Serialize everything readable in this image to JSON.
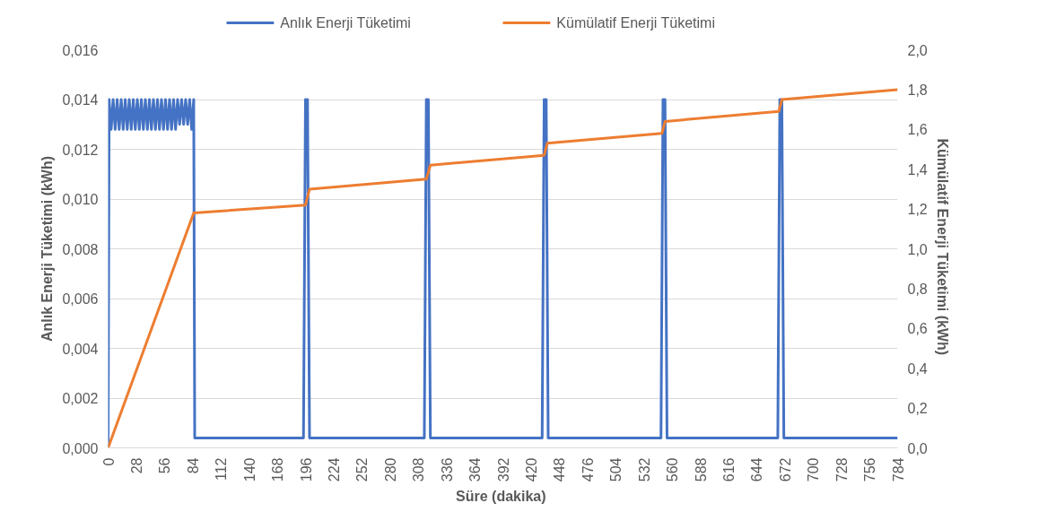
{
  "chart_data": {
    "type": "line",
    "xlabel": "Süre  (dakika)",
    "ylabel": "Anlık Enerji Tüketimi (kWh)",
    "y2label": "Kümülatif Enerji Tüketimi  (kWh)",
    "xlim": [
      0,
      784
    ],
    "xticks": [
      0,
      28,
      56,
      84,
      112,
      140,
      168,
      196,
      224,
      252,
      280,
      308,
      336,
      364,
      392,
      420,
      448,
      476,
      504,
      532,
      560,
      588,
      616,
      644,
      672,
      700,
      728,
      756,
      784
    ],
    "ylim": [
      0,
      0.016
    ],
    "yticks": [
      {
        "value": 0,
        "label": "0,000"
      },
      {
        "value": 0.002,
        "label": "0,002"
      },
      {
        "value": 0.004,
        "label": "0,004"
      },
      {
        "value": 0.006,
        "label": "0,006"
      },
      {
        "value": 0.008,
        "label": "0,008"
      },
      {
        "value": 0.01,
        "label": "0,010"
      },
      {
        "value": 0.012,
        "label": "0,012"
      },
      {
        "value": 0.014,
        "label": "0,014"
      },
      {
        "value": 0.016,
        "label": "0,016"
      }
    ],
    "y2lim": [
      0,
      2.0
    ],
    "y2ticks": [
      {
        "value": 0,
        "label": "0,0"
      },
      {
        "value": 0.2,
        "label": "0,2"
      },
      {
        "value": 0.4,
        "label": "0,4"
      },
      {
        "value": 0.6,
        "label": "0,6"
      },
      {
        "value": 0.8,
        "label": "0,8"
      },
      {
        "value": 1.0,
        "label": "1,0"
      },
      {
        "value": 1.2,
        "label": "1,2"
      },
      {
        "value": 1.4,
        "label": "1,4"
      },
      {
        "value": 1.6,
        "label": "1,6"
      },
      {
        "value": 1.8,
        "label": "1,8"
      },
      {
        "value": 2.0,
        "label": "2,0"
      }
    ],
    "grid": "y",
    "legend": "top",
    "line_style": "solid",
    "series": [
      {
        "name": "Anlık Enerji Tüketimi",
        "color": "#4472c4",
        "x": [
          0,
          1,
          3,
          5,
          7,
          9,
          11,
          13,
          15,
          17,
          19,
          21,
          23,
          25,
          27,
          29,
          31,
          33,
          35,
          37,
          39,
          41,
          43,
          45,
          47,
          49,
          51,
          53,
          55,
          57,
          59,
          61,
          63,
          65,
          67,
          69,
          71,
          73,
          75,
          77,
          79,
          81,
          83,
          85,
          86,
          194,
          196,
          197,
          198,
          200,
          314,
          316,
          317,
          318,
          320,
          431,
          433,
          434,
          435,
          437,
          549,
          551,
          552,
          553,
          555,
          665,
          667,
          668,
          669,
          671,
          784
        ],
        "values": [
          0,
          0.014,
          0.0128,
          0.014,
          0.0128,
          0.014,
          0.0128,
          0.014,
          0.0128,
          0.014,
          0.0128,
          0.014,
          0.0128,
          0.014,
          0.0128,
          0.014,
          0.0128,
          0.014,
          0.0128,
          0.014,
          0.0128,
          0.014,
          0.0128,
          0.014,
          0.0128,
          0.014,
          0.0128,
          0.014,
          0.0128,
          0.014,
          0.0128,
          0.014,
          0.0128,
          0.014,
          0.0128,
          0.014,
          0.013,
          0.014,
          0.013,
          0.014,
          0.013,
          0.014,
          0.0128,
          0.014,
          0.0004,
          0.0004,
          0.014,
          0.0128,
          0.014,
          0.0004,
          0.0004,
          0.014,
          0.0128,
          0.014,
          0.0004,
          0.0004,
          0.014,
          0.0128,
          0.014,
          0.0004,
          0.0004,
          0.014,
          0.0128,
          0.014,
          0.0004,
          0.0004,
          0.014,
          0.0128,
          0.014,
          0.0004,
          0.0004
        ]
      },
      {
        "name": "Kümülatif Enerji Tüketimi",
        "color": "#ed7d31",
        "axis": "y2",
        "x": [
          0,
          85,
          196,
          200,
          316,
          320,
          433,
          436,
          550,
          553,
          666,
          669,
          784
        ],
        "values": [
          0,
          1.18,
          1.22,
          1.3,
          1.35,
          1.42,
          1.47,
          1.53,
          1.58,
          1.64,
          1.69,
          1.75,
          1.8
        ]
      }
    ]
  }
}
